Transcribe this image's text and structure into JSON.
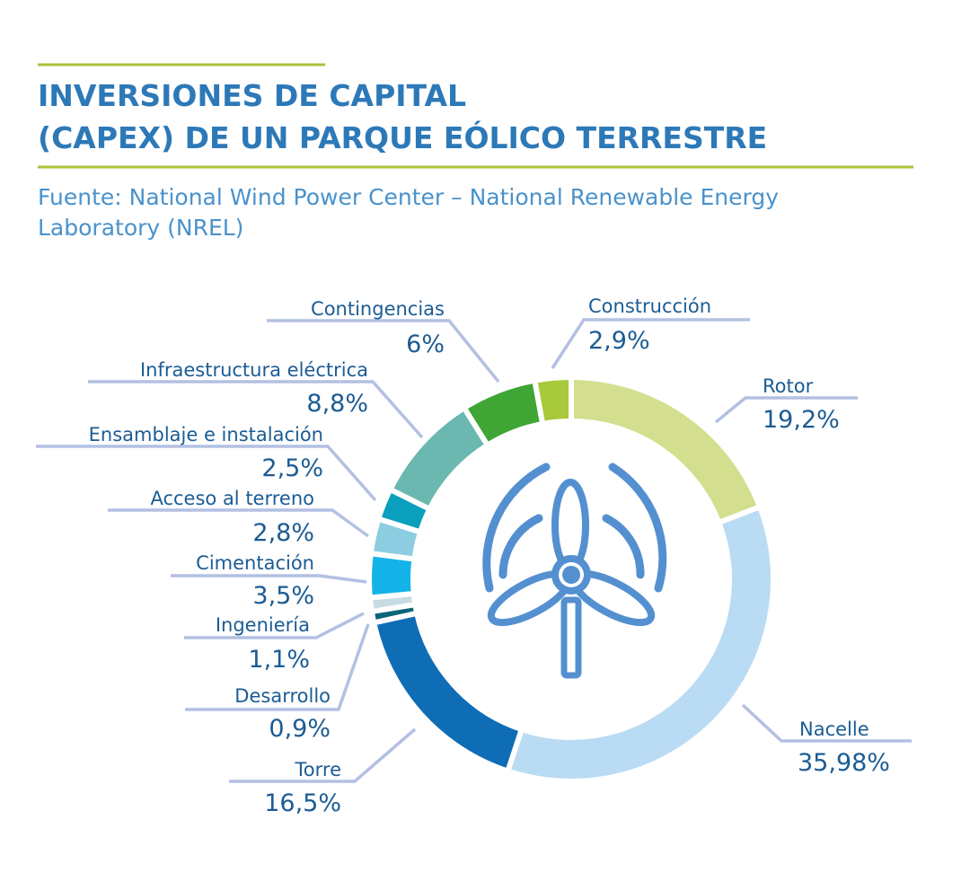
{
  "chart_data": {
    "type": "pie",
    "donut": true,
    "title": [
      "INVERSIONES DE CAPITAL",
      "(CAPEX) DE UN PARQUE EÓLICO TERRESTRE"
    ],
    "subtitle": [
      "Fuente: National Wind Power Center – National Renewable Energy",
      "Laboratory (NREL)"
    ],
    "center_icon": "wind-turbine-icon",
    "slices": [
      {
        "label": "Rotor",
        "value": 19.2,
        "text": "19,2%",
        "color": "#d3df8e"
      },
      {
        "label": "Nacelle",
        "value": 35.98,
        "text": "35,98%",
        "color": "#b9dbf3"
      },
      {
        "label": "Torre",
        "value": 16.5,
        "text": "16,5%",
        "color": "#0f6db6"
      },
      {
        "label": "Desarrollo",
        "value": 0.9,
        "text": "0,9%",
        "color": "#0a6478"
      },
      {
        "label": "Ingeniería",
        "value": 1.1,
        "text": "1,1%",
        "color": "#c7dbe4"
      },
      {
        "label": "Cimentación",
        "value": 3.5,
        "text": "3,5%",
        "color": "#15b4e8"
      },
      {
        "label": "Acceso al terreno",
        "value": 2.8,
        "text": "2,8%",
        "color": "#8ccde2"
      },
      {
        "label": "Ensamblaje e instalación",
        "value": 2.5,
        "text": "2,5%",
        "color": "#0a9fbd"
      },
      {
        "label": "Infraestructura eléctrica",
        "value": 8.8,
        "text": "8,8%",
        "color": "#6ab8b0"
      },
      {
        "label": "Contingencias",
        "value": 6,
        "text": "6%",
        "color": "#3fa535"
      },
      {
        "label": "Construcción",
        "value": 2.9,
        "text": "2,9%",
        "color": "#a9c93d"
      }
    ]
  },
  "colors": {
    "title": "#2d79b8",
    "accent_line": "#a8c33a",
    "text": "#1b5c94",
    "leader": "#b3c0e2",
    "icon": "#5490d0"
  }
}
